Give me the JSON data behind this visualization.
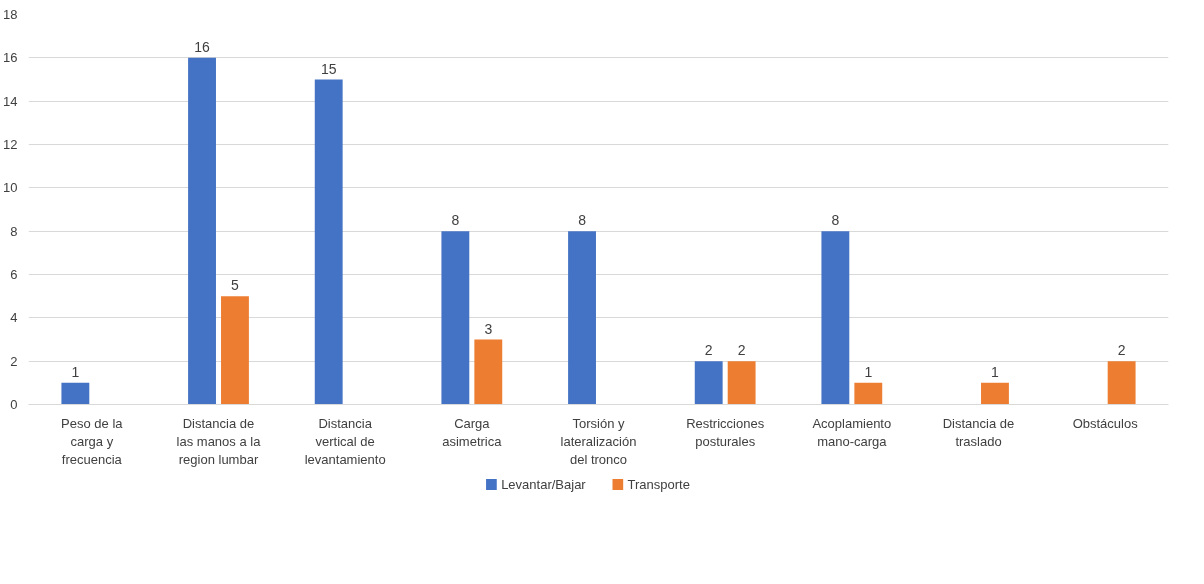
{
  "chart_data": {
    "type": "bar",
    "categories": [
      "Peso de la carga y frecuencia",
      "Distancia de las manos a la region lumbar",
      "Distancia vertical de levantamiento",
      "Carga asimetrica",
      "Torsión y lateralización del tronco",
      "Restricciones posturales",
      "Acoplamiento mano-carga",
      "Distancia de traslado",
      "Obstáculos"
    ],
    "series": [
      {
        "name": "Levantar/Bajar",
        "color": "#4472c4",
        "values": [
          1,
          16,
          15,
          8,
          8,
          2,
          8,
          null,
          null
        ]
      },
      {
        "name": "Transporte",
        "color": "#ed7d31",
        "values": [
          null,
          5,
          null,
          3,
          null,
          2,
          1,
          1,
          2
        ]
      }
    ],
    "ylim": [
      0,
      18
    ],
    "yticks": [
      0,
      2,
      4,
      6,
      8,
      10,
      12,
      14,
      16,
      18
    ],
    "grid": "y",
    "legend": "bottom",
    "data_labels": true
  }
}
